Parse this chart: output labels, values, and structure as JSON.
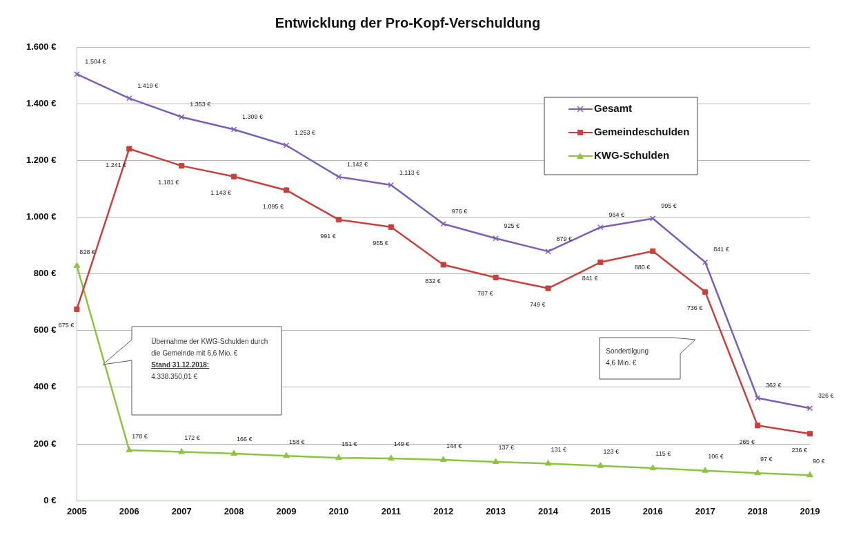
{
  "chart_data": {
    "type": "line",
    "title": "Entwicklung der Pro-Kopf-Verschuldung",
    "categories": [
      "2005",
      "2006",
      "2007",
      "2008",
      "2009",
      "2010",
      "2011",
      "2012",
      "2013",
      "2014",
      "2015",
      "2016",
      "2017",
      "2018",
      "2019"
    ],
    "series": [
      {
        "name": "Gesamt",
        "color": "#7b5fb5",
        "marker": "cross",
        "values": [
          1504,
          1419,
          1353,
          1309,
          1253,
          1142,
          1113,
          976,
          925,
          879,
          964,
          995,
          841,
          362,
          326
        ],
        "value_labels": [
          "1.504 €",
          "1.419 €",
          "1.353 €",
          "1.309 €",
          "1.253 €",
          "1.142 €",
          "1.113 €",
          "976 €",
          "925 €",
          "879 €",
          "964 €",
          "995 €",
          "841 €",
          "362 €",
          "326 €"
        ]
      },
      {
        "name": "Gemeindeschulden",
        "color": "#c8403d",
        "marker": "square",
        "values": [
          675,
          1241,
          1181,
          1143,
          1095,
          991,
          965,
          832,
          787,
          749,
          841,
          880,
          736,
          265,
          236
        ],
        "value_labels": [
          "675 €",
          "1.241 €",
          "1.181 €",
          "1.143 €",
          "1.095 €",
          "991 €",
          "965 €",
          "832 €",
          "787 €",
          "749 €",
          "841 €",
          "880 €",
          "736 €",
          "265 €",
          "236 €"
        ]
      },
      {
        "name": "KWG-Schulden",
        "color": "#8cc43f",
        "marker": "triangle",
        "values": [
          828,
          178,
          172,
          166,
          158,
          151,
          149,
          144,
          137,
          131,
          123,
          115,
          106,
          97,
          90
        ],
        "value_labels": [
          "828 €",
          "178 €",
          "172 €",
          "166 €",
          "158 €",
          "151 €",
          "149 €",
          "144 €",
          "137 €",
          "131 €",
          "123 €",
          "115 €",
          "106 €",
          "97 €",
          "90 €"
        ]
      }
    ],
    "ylim": [
      0,
      1600
    ],
    "yticks": [
      {
        "value": 0,
        "label": "0 €"
      },
      {
        "value": 200,
        "label": "200 €"
      },
      {
        "value": 400,
        "label": "400 €"
      },
      {
        "value": 600,
        "label": "600 €"
      },
      {
        "value": 800,
        "label": "800 €"
      },
      {
        "value": 1000,
        "label": "1.000 €"
      },
      {
        "value": 1200,
        "label": "1.200 €"
      },
      {
        "value": 1400,
        "label": "1.400 €"
      },
      {
        "value": 1600,
        "label": "1.600 €"
      }
    ],
    "grid": "y",
    "legend": "top right",
    "line_style": "solid",
    "annotations": [
      "Übernahme der KWG-Schulden durch die Gemeinde mit 6,6 Mio. €",
      "Stand 31.12.2018:",
      "4.338.350,01 €",
      "Sondertilgung 4,6 Mio. €"
    ]
  }
}
